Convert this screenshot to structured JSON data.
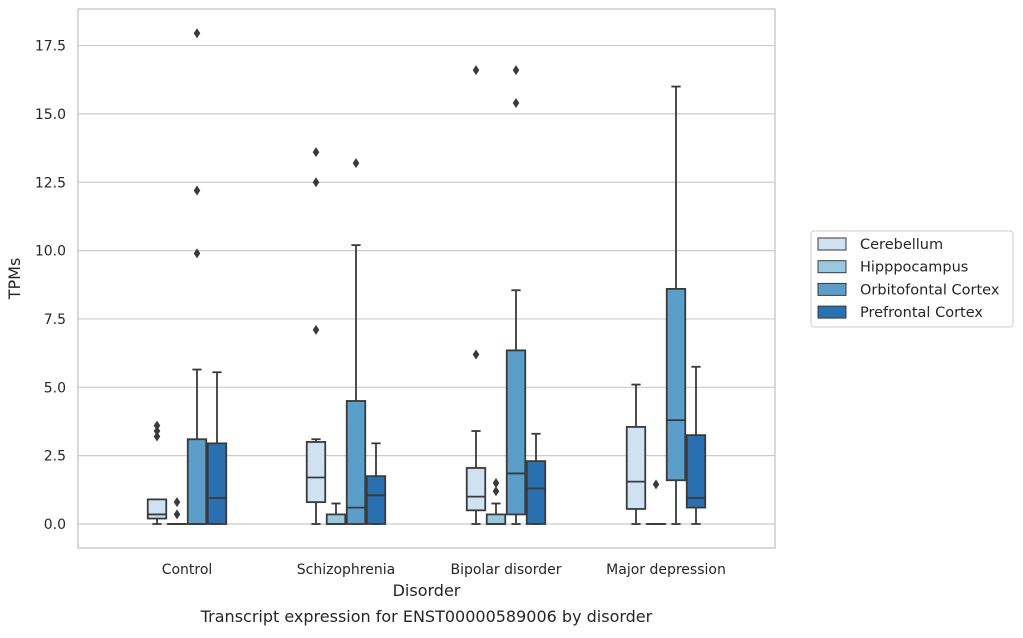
{
  "chart_data": {
    "type": "box",
    "xlabel": "Disorder",
    "ylabel": "TPMs",
    "caption": "Transcript expression for ENST00000589006 by disorder",
    "ylim": [
      -0.9,
      18.9
    ],
    "yticks": [
      "0.0",
      "2.5",
      "5.0",
      "7.5",
      "10.0",
      "12.5",
      "15.0",
      "17.5"
    ],
    "grid": "horizontal",
    "legend_position": "right",
    "categories": [
      "Control",
      "Schizophrenia",
      "Bipolar disorder",
      "Major depression"
    ],
    "series": [
      {
        "name": "Cerebellum",
        "color": "#d0e2f2",
        "boxes": [
          {
            "whislo": 0.0,
            "q1": 0.2,
            "median": 0.35,
            "q3": 0.9,
            "whishi": 0.9,
            "fliers": [
              3.2,
              3.4,
              3.6
            ]
          },
          {
            "whislo": 0.0,
            "q1": 0.8,
            "median": 1.7,
            "q3": 3.0,
            "whishi": 3.1,
            "fliers": [
              7.1,
              12.5,
              13.6
            ]
          },
          {
            "whislo": 0.0,
            "q1": 0.5,
            "median": 1.0,
            "q3": 2.05,
            "whishi": 3.4,
            "fliers": [
              6.2,
              16.6
            ]
          },
          {
            "whislo": 0.0,
            "q1": 0.55,
            "median": 1.55,
            "q3": 3.55,
            "whishi": 5.1,
            "fliers": []
          }
        ]
      },
      {
        "name": "Hipppocampus",
        "color": "#9ac8e0",
        "boxes": [
          {
            "whislo": 0.0,
            "q1": 0.0,
            "median": 0.0,
            "q3": 0.0,
            "whishi": 0.0,
            "fliers": [
              0.35,
              0.8
            ]
          },
          {
            "whislo": 0.0,
            "q1": 0.0,
            "median": 0.0,
            "q3": 0.35,
            "whishi": 0.75,
            "fliers": []
          },
          {
            "whislo": 0.0,
            "q1": 0.0,
            "median": 0.0,
            "q3": 0.35,
            "whishi": 0.75,
            "fliers": [
              1.2,
              1.5
            ]
          },
          {
            "whislo": 0.0,
            "q1": 0.0,
            "median": 0.0,
            "q3": 0.0,
            "whishi": 0.0,
            "fliers": [
              1.45
            ]
          }
        ]
      },
      {
        "name": "Orbitofontal Cortex",
        "color": "#5a9ec9",
        "boxes": [
          {
            "whislo": 0.0,
            "q1": 0.0,
            "median": 0.0,
            "q3": 3.1,
            "whishi": 5.65,
            "fliers": [
              9.9,
              12.2,
              17.95
            ]
          },
          {
            "whislo": 0.0,
            "q1": 0.0,
            "median": 0.6,
            "q3": 4.5,
            "whishi": 10.2,
            "fliers": [
              13.2
            ]
          },
          {
            "whislo": 0.0,
            "q1": 0.35,
            "median": 1.85,
            "q3": 6.35,
            "whishi": 8.55,
            "fliers": [
              15.4,
              16.6
            ]
          },
          {
            "whislo": 0.0,
            "q1": 1.6,
            "median": 3.8,
            "q3": 8.6,
            "whishi": 16.0,
            "fliers": []
          }
        ]
      },
      {
        "name": "Prefrontal Cortex",
        "color": "#2a6fb0",
        "boxes": [
          {
            "whislo": 0.0,
            "q1": 0.0,
            "median": 0.95,
            "q3": 2.95,
            "whishi": 5.55,
            "fliers": []
          },
          {
            "whislo": 0.0,
            "q1": 0.0,
            "median": 1.05,
            "q3": 1.75,
            "whishi": 2.95,
            "fliers": []
          },
          {
            "whislo": 0.0,
            "q1": 0.0,
            "median": 1.3,
            "q3": 2.3,
            "whishi": 3.3,
            "fliers": []
          },
          {
            "whislo": 0.0,
            "q1": 0.6,
            "median": 0.95,
            "q3": 3.25,
            "whishi": 5.75,
            "fliers": []
          }
        ]
      }
    ]
  }
}
